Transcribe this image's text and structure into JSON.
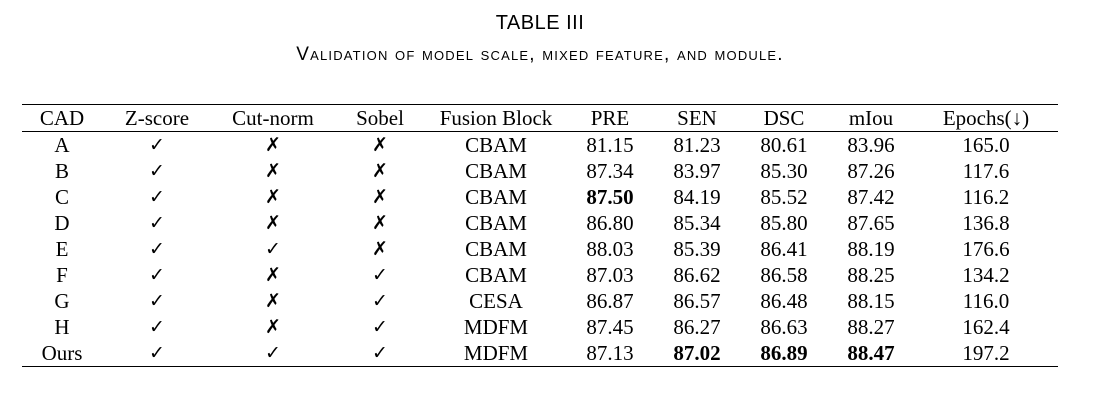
{
  "caption": {
    "table_number": "TABLE III",
    "title": "Validation of model scale, mixed feature, and module."
  },
  "table": {
    "headers": [
      "CAD",
      "Z-score",
      "Cut-norm",
      "Sobel",
      "Fusion Block",
      "PRE",
      "SEN",
      "DSC",
      "mIou",
      "Epochs(↓)"
    ],
    "rows": [
      [
        "A",
        "✓",
        "✗",
        "✗",
        "CBAM",
        "81.15",
        "81.23",
        "80.61",
        "83.96",
        "165.0"
      ],
      [
        "B",
        "✓",
        "✗",
        "✗",
        "CBAM",
        "87.34",
        "83.97",
        "85.30",
        "87.26",
        "117.6"
      ],
      [
        "C",
        "✓",
        "✗",
        "✗",
        "CBAM",
        "87.50",
        "84.19",
        "85.52",
        "87.42",
        "116.2"
      ],
      [
        "D",
        "✓",
        "✗",
        "✗",
        "CBAM",
        "86.80",
        "85.34",
        "85.80",
        "87.65",
        "136.8"
      ],
      [
        "E",
        "✓",
        "✓",
        "✗",
        "CBAM",
        "88.03",
        "85.39",
        "86.41",
        "88.19",
        "176.6"
      ],
      [
        "F",
        "✓",
        "✗",
        "✓",
        "CBAM",
        "87.03",
        "86.62",
        "86.58",
        "88.25",
        "134.2"
      ],
      [
        "G",
        "✓",
        "✗",
        "✓",
        "CESA",
        "86.87",
        "86.57",
        "86.48",
        "88.15",
        "116.0"
      ],
      [
        "H",
        "✓",
        "✗",
        "✓",
        "MDFM",
        "87.45",
        "86.27",
        "86.63",
        "88.27",
        "162.4"
      ],
      [
        "Ours",
        "✓",
        "✓",
        "✓",
        "MDFM",
        "87.13",
        "87.02",
        "86.89",
        "88.47",
        "197.2"
      ]
    ],
    "bold_cells": [
      [
        2,
        5
      ],
      [
        8,
        6
      ],
      [
        8,
        7
      ],
      [
        8,
        8
      ]
    ]
  }
}
